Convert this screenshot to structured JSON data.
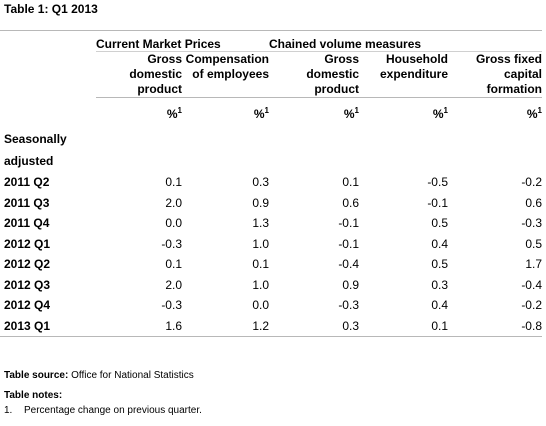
{
  "title": "Table 1: Q1 2013",
  "groups": {
    "current": "Current Market Prices",
    "chained": "Chained volume measures"
  },
  "columns": [
    {
      "line1": "Gross",
      "line2": "domestic",
      "line3": "product",
      "unit": "%",
      "sup": "1"
    },
    {
      "line1": "Compensation",
      "line2": "of employees",
      "line3": "",
      "unit": "%",
      "sup": "1"
    },
    {
      "line1": "Gross",
      "line2": "domestic",
      "line3": "product",
      "unit": "%",
      "sup": "1"
    },
    {
      "line1": "Household",
      "line2": "expenditure",
      "line3": "",
      "unit": "%",
      "sup": "1"
    },
    {
      "line1": "Gross fixed",
      "line2": "capital",
      "line3": "formation",
      "unit": "%",
      "sup": "1"
    }
  ],
  "section_label_1": "Seasonally",
  "section_label_2": "adjusted",
  "rows": [
    {
      "label": "2011 Q2",
      "values": [
        "0.1",
        "0.3",
        "0.1",
        "-0.5",
        "-0.2"
      ]
    },
    {
      "label": "2011 Q3",
      "values": [
        "2.0",
        "0.9",
        "0.6",
        "-0.1",
        "0.6"
      ]
    },
    {
      "label": "2011 Q4",
      "values": [
        "0.0",
        "1.3",
        "-0.1",
        "0.5",
        "-0.3"
      ]
    },
    {
      "label": "2012 Q1",
      "values": [
        "-0.3",
        "1.0",
        "-0.1",
        "0.4",
        "0.5"
      ]
    },
    {
      "label": "2012 Q2",
      "values": [
        "0.1",
        "0.1",
        "-0.4",
        "0.5",
        "1.7"
      ]
    },
    {
      "label": "2012 Q3",
      "values": [
        "2.0",
        "1.0",
        "0.9",
        "0.3",
        "-0.4"
      ]
    },
    {
      "label": "2012 Q4",
      "values": [
        "-0.3",
        "0.0",
        "-0.3",
        "0.4",
        "-0.2"
      ]
    },
    {
      "label": "2013 Q1",
      "values": [
        "1.6",
        "1.2",
        "0.3",
        "0.1",
        "-0.8"
      ]
    }
  ],
  "source_label": "Table source:",
  "source_text": "Office for National Statistics",
  "notes_title": "Table notes:",
  "notes": [
    {
      "num": "1.",
      "text": "Percentage change on previous quarter."
    }
  ]
}
